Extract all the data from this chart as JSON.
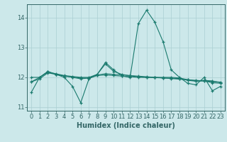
{
  "x": [
    0,
    1,
    2,
    3,
    4,
    5,
    6,
    7,
    8,
    9,
    10,
    11,
    12,
    13,
    14,
    15,
    16,
    17,
    18,
    19,
    20,
    21,
    22,
    23
  ],
  "series": [
    [
      11.5,
      12.0,
      12.2,
      12.1,
      12.0,
      11.7,
      11.15,
      11.95,
      12.1,
      12.5,
      12.25,
      12.05,
      12.0,
      13.8,
      14.25,
      13.85,
      13.2,
      12.25,
      12.0,
      11.8,
      11.75,
      12.0,
      11.55,
      11.7
    ],
    [
      11.85,
      11.95,
      12.15,
      12.1,
      12.05,
      12.0,
      11.95,
      11.98,
      12.08,
      12.12,
      12.1,
      12.08,
      12.06,
      12.04,
      12.02,
      12.0,
      11.98,
      11.96,
      11.94,
      11.92,
      11.9,
      11.88,
      11.86,
      11.84
    ],
    [
      12.0,
      12.0,
      12.18,
      12.12,
      12.06,
      12.03,
      12.0,
      12.0,
      12.1,
      12.45,
      12.2,
      12.1,
      12.05,
      12.02,
      12.0,
      12.0,
      12.0,
      12.0,
      11.98,
      11.92,
      11.88,
      11.9,
      11.88,
      11.82
    ],
    [
      11.85,
      12.0,
      12.18,
      12.1,
      12.04,
      12.01,
      11.98,
      11.97,
      12.06,
      12.08,
      12.06,
      12.04,
      12.02,
      12.0,
      12.0,
      11.99,
      11.98,
      11.97,
      11.96,
      11.9,
      11.87,
      11.88,
      11.82,
      11.8
    ]
  ],
  "line_color": "#1a7a6e",
  "bg_color": "#cce8ea",
  "grid_color": "#aacfd2",
  "axis_color": "#336666",
  "xlabel": "Humidex (Indice chaleur)",
  "xlim": [
    -0.5,
    23.5
  ],
  "ylim": [
    10.88,
    14.45
  ],
  "yticks": [
    11,
    12,
    13,
    14
  ],
  "xticks": [
    0,
    1,
    2,
    3,
    4,
    5,
    6,
    7,
    8,
    9,
    10,
    11,
    12,
    13,
    14,
    15,
    16,
    17,
    18,
    19,
    20,
    21,
    22,
    23
  ],
  "fontsize": 7,
  "marker": "+"
}
